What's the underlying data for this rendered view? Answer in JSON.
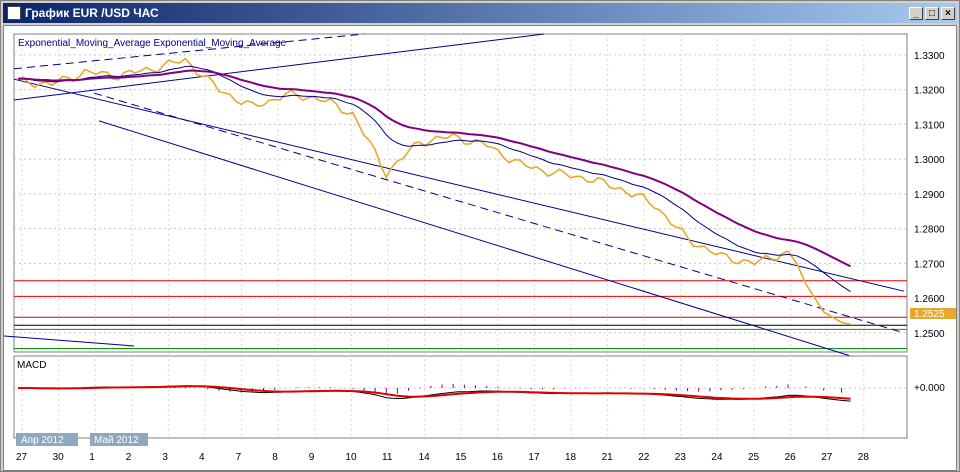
{
  "window": {
    "title": "График EUR /USD  ЧАС",
    "buttons": {
      "minimize": "_",
      "maximize": "□",
      "close": "×"
    }
  },
  "indicator_label": "Exponential_Moving_Average Exponential_Moving_Average",
  "macd_label": "MACD",
  "price_axis": [
    "1.3300",
    "1.3200",
    "1.3100",
    "1.3000",
    "1.2900",
    "1.2800",
    "1.2700",
    "1.2600",
    "1.2500"
  ],
  "current_price": "1.2525",
  "macd_axis": "+0.000",
  "date_axis": [
    "27",
    "30",
    "1",
    "2",
    "3",
    "4",
    "7",
    "8",
    "9",
    "10",
    "11",
    "14",
    "15",
    "16",
    "17",
    "18",
    "21",
    "22",
    "23",
    "24",
    "25",
    "26",
    "27",
    "28"
  ],
  "month_tags": [
    "Апр 2012",
    "Май 2012"
  ],
  "colors": {
    "price": "#e8a82c",
    "ema_slow": "#800080",
    "ema_fast": "#000080",
    "channel": "#00008b",
    "red_level": "#e00000",
    "green_level": "#00a000",
    "macd_signal": "#e00000",
    "macd_hist": "#800080"
  },
  "chart_data": {
    "type": "line",
    "title": "",
    "series": [
      {
        "name": "",
        "x_index": [
          0,
          6,
          12,
          18,
          24,
          30,
          36,
          42,
          48,
          54,
          60,
          66,
          72,
          78,
          84,
          90,
          96,
          102,
          108,
          114,
          120,
          126,
          132,
          138
        ],
        "values": [
          1.3225,
          1.3215,
          1.325,
          1.324,
          1.326,
          1.3285,
          1.32,
          1.315,
          1.3185,
          1.3175,
          1.313,
          1.296,
          1.305,
          1.3065,
          1.304,
          1.2985,
          1.296,
          1.2945,
          1.2915,
          1.287,
          1.277,
          1.272,
          1.27,
          1.2735
        ]
      }
    ],
    "levels_red": [
      1.265,
      1.2605,
      1.2545
    ],
    "levels_green": [
      1.251,
      1.2455
    ],
    "ylim": [
      1.2445,
      1.336
    ]
  }
}
